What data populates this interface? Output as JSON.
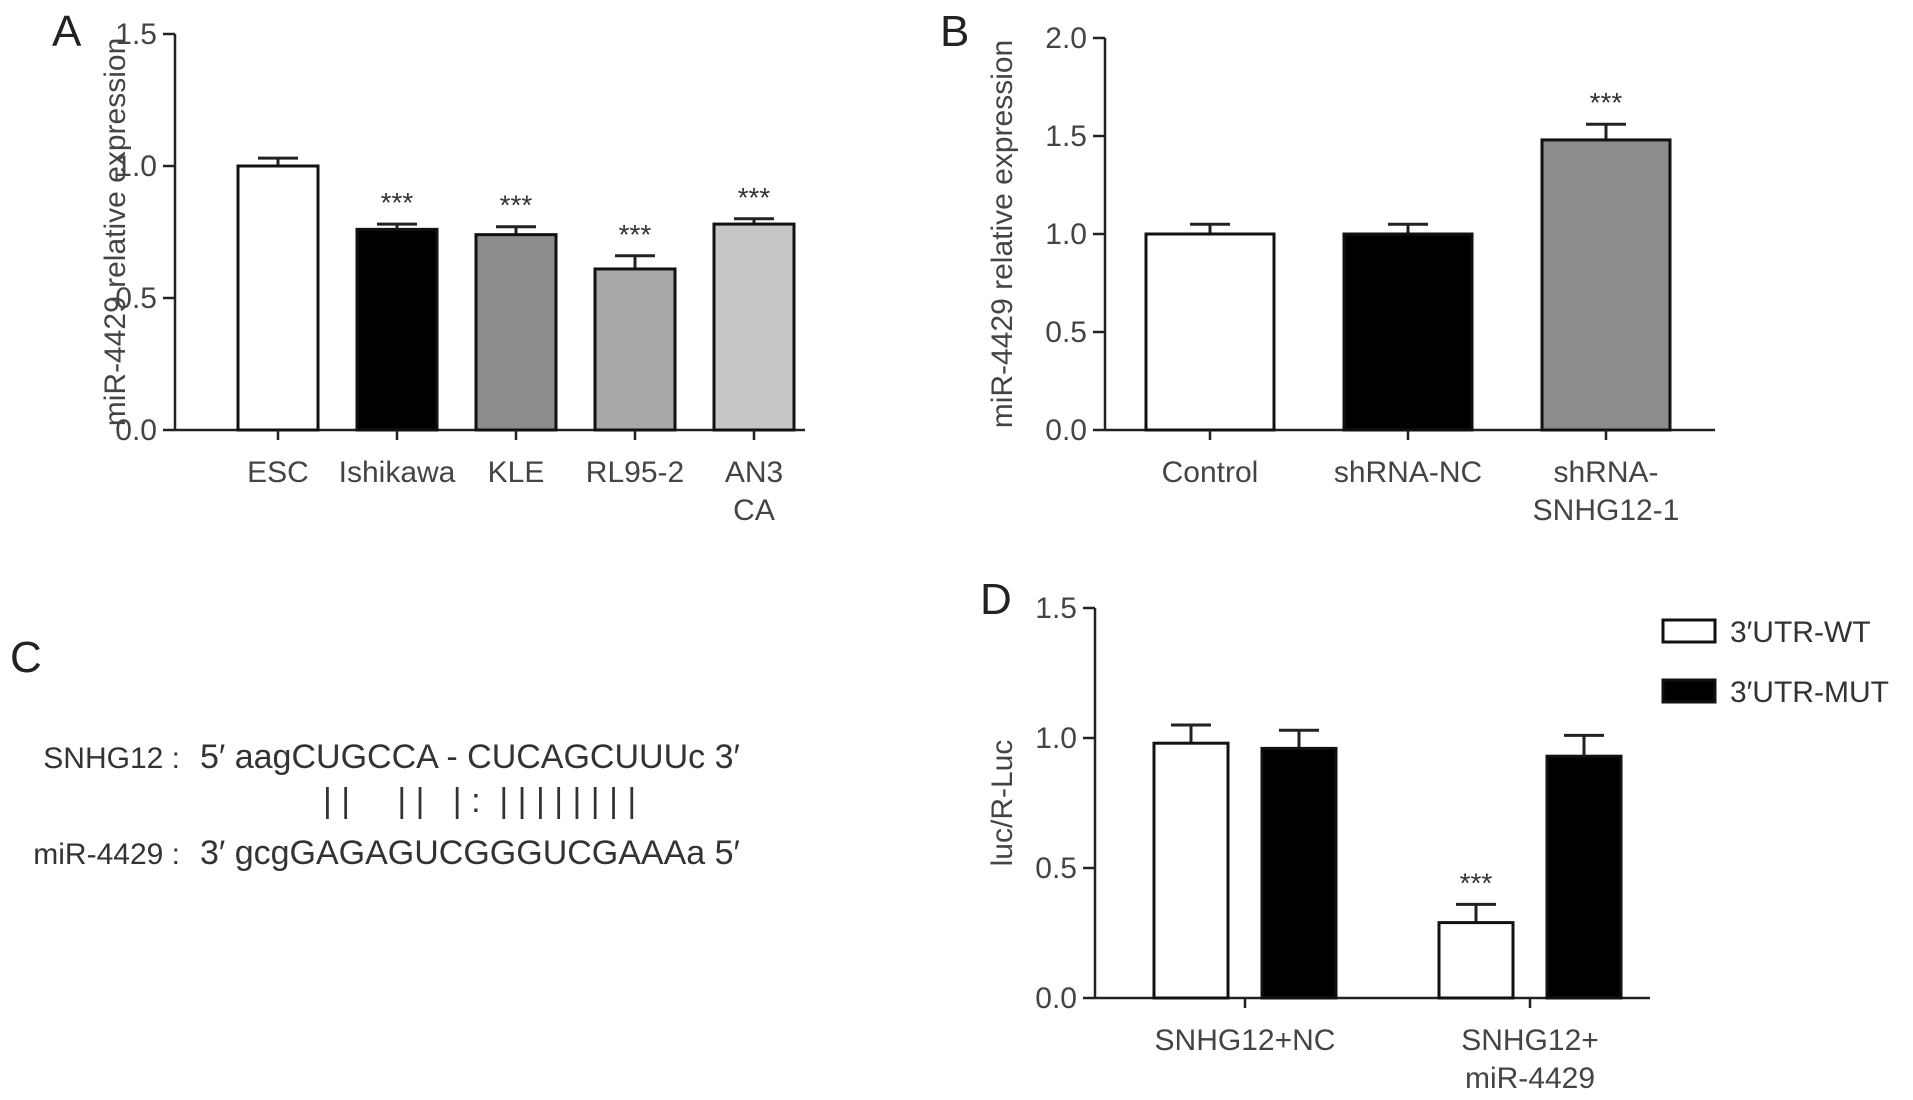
{
  "chart_data": [
    {
      "panel": "A",
      "type": "bar",
      "ylabel": "miR-4429 relative expression",
      "ylim": [
        0,
        1.5
      ],
      "yticks": [
        "0.0",
        "0.5",
        "1.0",
        "1.5"
      ],
      "categories": [
        [
          "ESC"
        ],
        [
          "Ishikawa"
        ],
        [
          "KLE"
        ],
        [
          "RL95-2"
        ],
        [
          "AN3",
          "CA"
        ]
      ],
      "values": [
        1.0,
        0.76,
        0.74,
        0.61,
        0.78
      ],
      "errors": [
        0.03,
        0.02,
        0.03,
        0.05,
        0.02
      ],
      "colors": [
        "#ffffff",
        "#000000",
        "#8c8c8c",
        "#a8a8a8",
        "#c6c6c6"
      ],
      "sig": [
        "",
        "***",
        "***",
        "***",
        "***"
      ]
    },
    {
      "panel": "B",
      "type": "bar",
      "ylabel": "miR-4429 relative expression",
      "ylim": [
        0,
        2.0
      ],
      "yticks": [
        "0.0",
        "0.5",
        "1.0",
        "1.5",
        "2.0"
      ],
      "categories": [
        [
          "Control"
        ],
        [
          "shRNA-NC"
        ],
        [
          "shRNA-",
          "SNHG12-1"
        ]
      ],
      "values": [
        1.0,
        1.0,
        1.48
      ],
      "errors": [
        0.05,
        0.05,
        0.08
      ],
      "colors": [
        "#ffffff",
        "#000000",
        "#8c8c8c"
      ],
      "sig": [
        "",
        "",
        "***"
      ]
    },
    {
      "panel": "D",
      "type": "bar",
      "ylabel": "luc/R-Luc",
      "ylim": [
        0,
        1.5
      ],
      "yticks": [
        "0.0",
        "0.5",
        "1.0",
        "1.5"
      ],
      "categories": [
        [
          "SNHG12+NC"
        ],
        [
          "SNHG12+",
          "miR-4429"
        ]
      ],
      "series": [
        {
          "name": "3′UTR-WT",
          "color": "#ffffff",
          "values": [
            0.98,
            0.29
          ],
          "errors": [
            0.07,
            0.07
          ],
          "sig": [
            "",
            "***"
          ]
        },
        {
          "name": "3′UTR-MUT",
          "color": "#000000",
          "values": [
            0.96,
            0.93
          ],
          "errors": [
            0.07,
            0.08
          ],
          "sig": [
            "",
            ""
          ]
        }
      ]
    }
  ],
  "panel_c": {
    "letter": "C",
    "row1_label": "SNHG12 :",
    "row1_seq": "5′ aagCUGCCA - CUCAGCUUUc 3′",
    "pairing": "| |     | |   | :  | | | | | | | |",
    "row2_label": "miR-4429 :",
    "row2_seq": "3′ gcgGAGAGUCGGGUCGAAAa 5′"
  },
  "panel_letters": {
    "a": "A",
    "b": "B",
    "c": "C",
    "d": "D"
  }
}
